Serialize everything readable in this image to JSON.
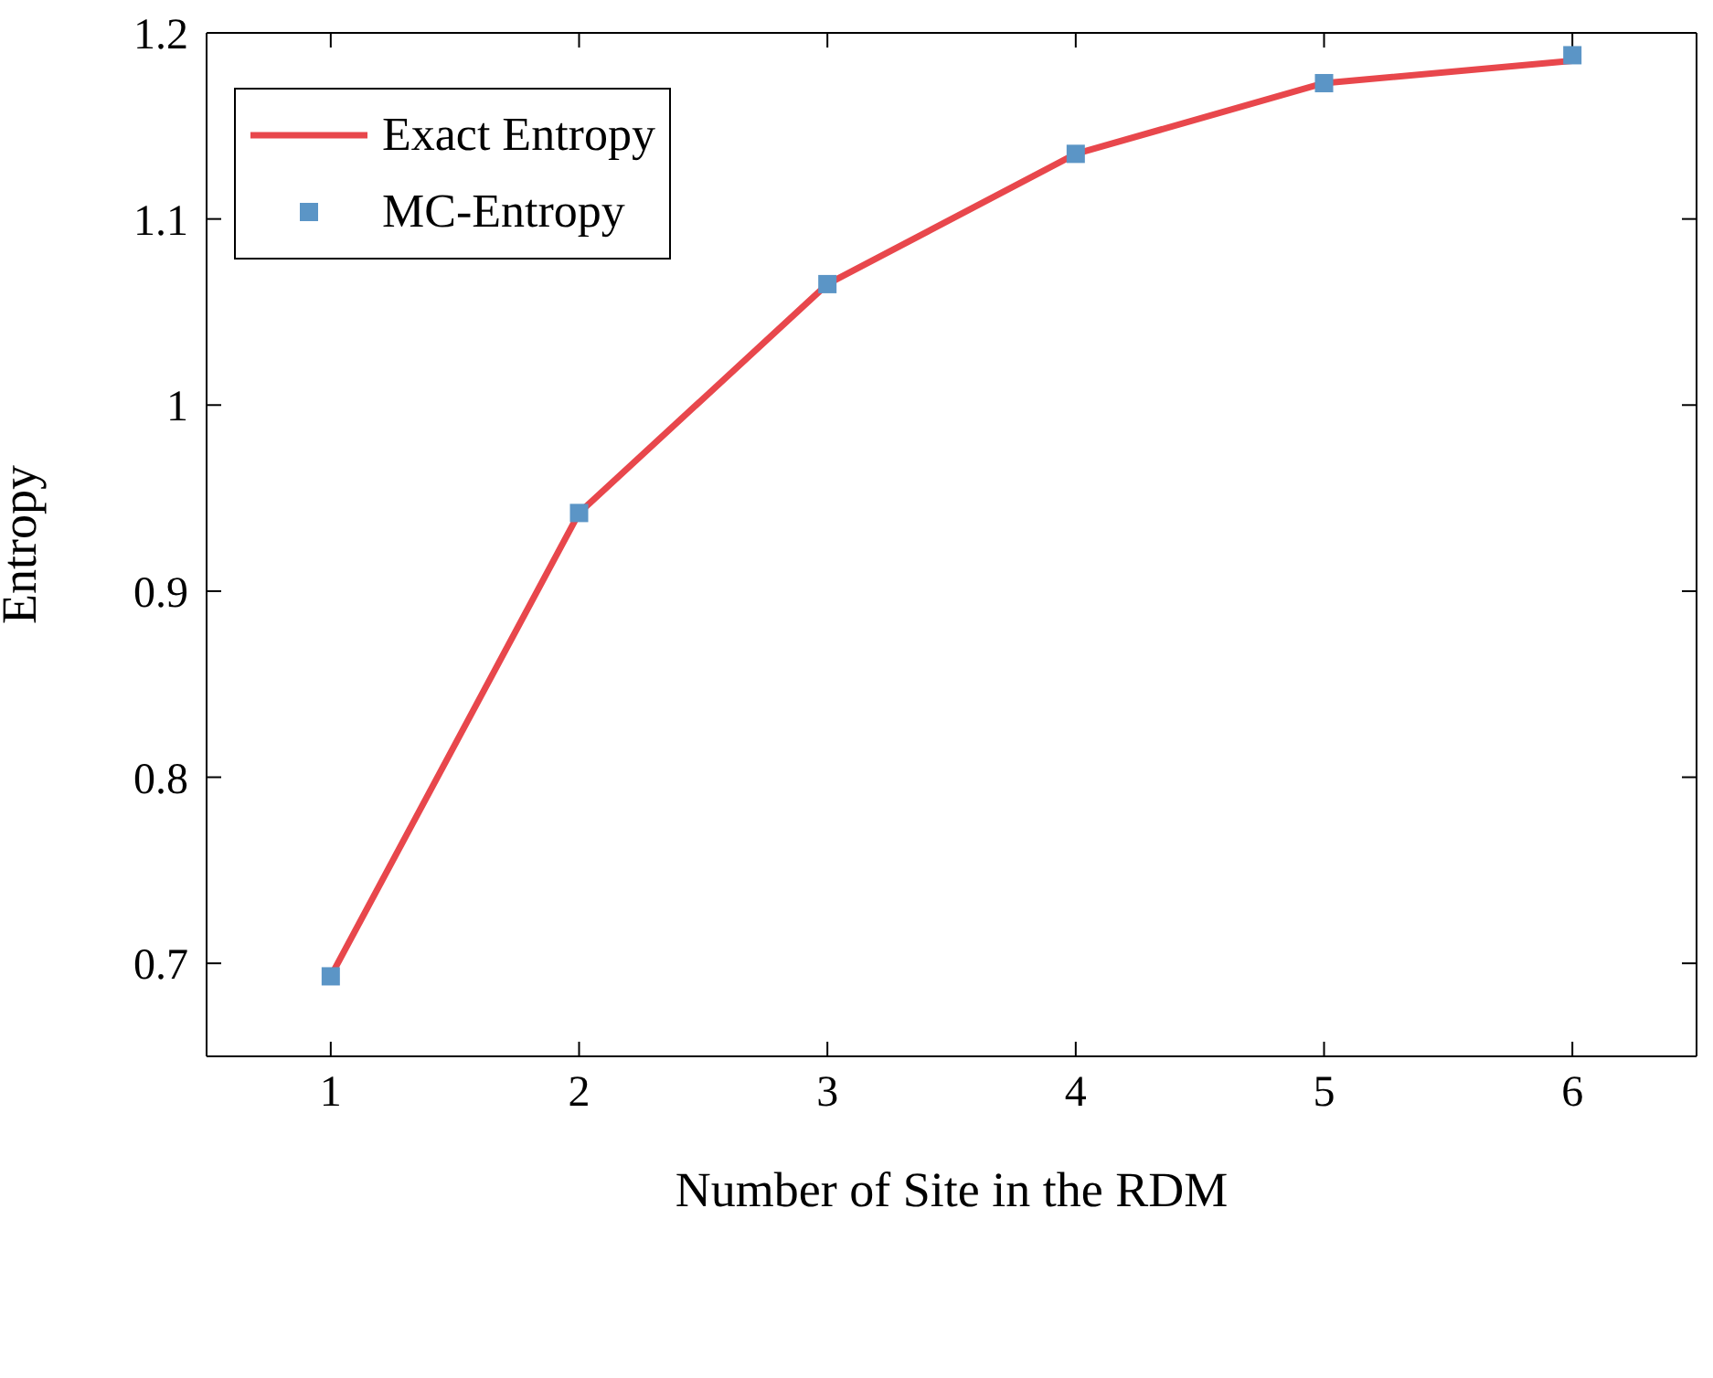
{
  "chart_data": {
    "type": "line",
    "xlabel": "Number of Site in the RDM",
    "ylabel": "Entropy",
    "x": [
      1,
      2,
      3,
      4,
      5,
      6
    ],
    "series": [
      {
        "name": "Exact Entropy",
        "color": "#e8474c",
        "marker": "none",
        "values": [
          0.693,
          0.942,
          1.065,
          1.135,
          1.173,
          1.185
        ]
      },
      {
        "name": "MC-Entropy",
        "type": "scatter",
        "color": "#5b95c6",
        "marker": "square",
        "values": [
          0.693,
          0.942,
          1.065,
          1.135,
          1.173,
          1.188
        ]
      }
    ],
    "xlim": [
      0.5,
      6.5
    ],
    "xticks": [
      1,
      2,
      3,
      4,
      5,
      6
    ],
    "ylim": [
      0.65,
      1.2
    ],
    "yticks": [
      0.7,
      0.8,
      0.9,
      1,
      1.1,
      1.2
    ],
    "legend": "top left"
  }
}
